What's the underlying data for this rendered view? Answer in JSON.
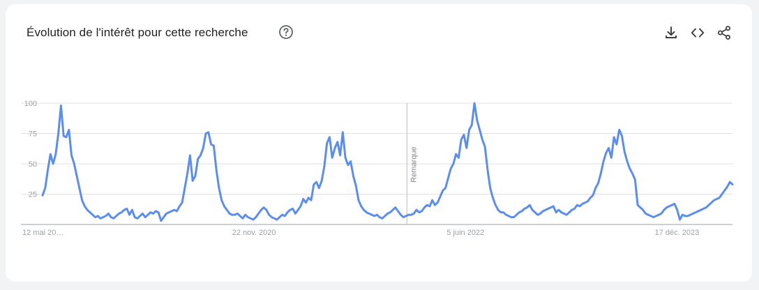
{
  "header": {
    "title": "Évolution de l'intérêt pour cette recherche",
    "help_icon": "help-circle-icon",
    "tools": [
      {
        "name": "download-icon"
      },
      {
        "name": "embed-code-icon"
      },
      {
        "name": "share-icon"
      }
    ]
  },
  "colors": {
    "series": "#5b8def",
    "grid": "#e0e0e0",
    "axis": "#9aa0a6",
    "note_line": "#bdbdbd"
  },
  "chart_data": {
    "type": "line",
    "title": "",
    "xlabel": "",
    "ylabel": "",
    "ylim": [
      0,
      100
    ],
    "yticks": [
      25,
      50,
      75,
      100
    ],
    "grid": true,
    "x_start": "2019-05-12",
    "x_end": "2024-05-12",
    "x_labels": [
      {
        "date": "2019-05-12",
        "label": "12 mai 20…"
      },
      {
        "date": "2020-11-22",
        "label": "22 nov. 2020"
      },
      {
        "date": "2022-06-05",
        "label": "5 juin 2022"
      },
      {
        "date": "2023-12-17",
        "label": "17 déc. 2023"
      }
    ],
    "annotation": {
      "date": "2022-01-01",
      "label": "Remarque"
    },
    "series": [
      {
        "values": [
          24,
          30,
          45,
          58,
          50,
          58,
          75,
          98,
          73,
          72,
          78,
          57,
          50,
          40,
          30,
          20,
          15,
          12,
          10,
          8,
          6,
          7,
          5,
          6,
          7,
          9,
          6,
          5,
          7,
          9,
          10,
          12,
          13,
          8,
          12,
          6,
          5,
          7,
          9,
          6,
          8,
          10,
          9,
          11,
          10,
          3,
          6,
          9,
          10,
          11,
          12,
          11,
          15,
          18,
          30,
          42,
          57,
          36,
          40,
          54,
          57,
          63,
          75,
          76,
          66,
          65,
          45,
          30,
          20,
          15,
          12,
          9,
          8,
          8,
          9,
          7,
          5,
          8,
          6,
          5,
          4,
          6,
          9,
          12,
          14,
          12,
          8,
          6,
          5,
          4,
          6,
          8,
          7,
          10,
          12,
          13,
          9,
          12,
          15,
          21,
          18,
          22,
          20,
          33,
          35,
          30,
          36,
          48,
          67,
          72,
          55,
          63,
          68,
          57,
          76,
          55,
          49,
          52,
          40,
          32,
          20,
          15,
          12,
          10,
          9,
          8,
          7,
          8,
          6,
          5,
          7,
          9,
          10,
          12,
          14,
          11,
          8,
          6,
          7,
          8,
          8,
          9,
          12,
          10,
          11,
          14,
          16,
          15,
          20,
          16,
          18,
          23,
          28,
          30,
          38,
          46,
          50,
          58,
          55,
          70,
          74,
          63,
          78,
          82,
          100,
          86,
          78,
          70,
          64,
          45,
          30,
          22,
          16,
          12,
          10,
          10,
          8,
          7,
          6,
          6,
          8,
          10,
          11,
          13,
          14,
          16,
          12,
          10,
          8,
          9,
          11,
          12,
          13,
          14,
          15,
          10,
          12,
          10,
          9,
          8,
          10,
          12,
          13,
          16,
          15,
          17,
          18,
          19,
          22,
          24,
          30,
          34,
          42,
          52,
          59,
          63,
          55,
          72,
          66,
          78,
          73,
          60,
          52,
          46,
          42,
          37,
          16,
          14,
          12,
          9,
          8,
          7,
          6,
          7,
          8,
          9,
          12,
          14,
          15,
          16,
          17,
          12,
          4,
          8,
          7,
          7,
          8,
          9,
          10,
          11,
          12,
          13,
          14,
          16,
          18,
          20,
          21,
          22,
          25,
          28,
          31,
          35,
          33
        ]
      }
    ]
  }
}
